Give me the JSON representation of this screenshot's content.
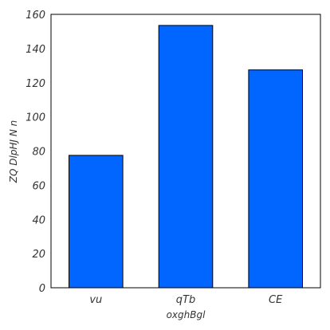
{
  "chart_data": {
    "type": "bar",
    "categories": [
      "vu",
      "qTb",
      "CE"
    ],
    "values": [
      77.5,
      153.5,
      127.5
    ],
    "xlabel": "oxghBgl",
    "ylabel": "ZQ DlpHJ N n",
    "ylim": [
      0,
      160
    ],
    "yticks": [
      0,
      20,
      40,
      60,
      80,
      100,
      120,
      140,
      160
    ],
    "grid": false,
    "bar_color": "#0066ff",
    "edge_color": "#000000"
  }
}
